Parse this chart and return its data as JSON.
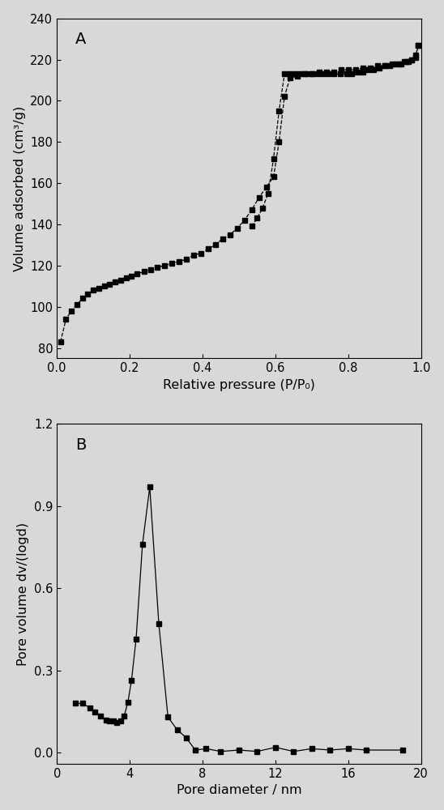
{
  "plot_A": {
    "label": "A",
    "adsorption_x": [
      0.01,
      0.025,
      0.04,
      0.055,
      0.07,
      0.085,
      0.1,
      0.115,
      0.13,
      0.145,
      0.16,
      0.175,
      0.19,
      0.205,
      0.22,
      0.24,
      0.258,
      0.275,
      0.295,
      0.315,
      0.335,
      0.355,
      0.375,
      0.395,
      0.415,
      0.435,
      0.455,
      0.475,
      0.495,
      0.515,
      0.535,
      0.555,
      0.575,
      0.595,
      0.61,
      0.625,
      0.64,
      0.66,
      0.68,
      0.7,
      0.72,
      0.74,
      0.76,
      0.78,
      0.8,
      0.82,
      0.84,
      0.86,
      0.88,
      0.9,
      0.92,
      0.94,
      0.96,
      0.975,
      0.985,
      0.993
    ],
    "adsorption_y": [
      83,
      94,
      98,
      101,
      104,
      106,
      108,
      109,
      110,
      111,
      112,
      113,
      114,
      115,
      116,
      117,
      118,
      119,
      120,
      121,
      122,
      123,
      125,
      126,
      128,
      130,
      133,
      135,
      138,
      142,
      147,
      153,
      158,
      163,
      180,
      202,
      211,
      212,
      213,
      213,
      214,
      214,
      214,
      215,
      215,
      215,
      216,
      216,
      217,
      217,
      218,
      218,
      219,
      220,
      221,
      227
    ],
    "desorption_x": [
      0.993,
      0.985,
      0.975,
      0.965,
      0.955,
      0.945,
      0.93,
      0.915,
      0.9,
      0.885,
      0.87,
      0.855,
      0.84,
      0.825,
      0.81,
      0.795,
      0.778,
      0.76,
      0.745,
      0.73,
      0.715,
      0.7,
      0.685,
      0.67,
      0.655,
      0.64,
      0.625,
      0.61,
      0.595,
      0.58,
      0.565,
      0.55,
      0.535
    ],
    "desorption_y": [
      227,
      222,
      220,
      219,
      219,
      218,
      218,
      217,
      217,
      216,
      215,
      215,
      214,
      214,
      213,
      213,
      213,
      213,
      213,
      213,
      213,
      213,
      213,
      213,
      213,
      213,
      213,
      195,
      172,
      155,
      148,
      143,
      139
    ],
    "xlabel": "Relative pressure (P/P₀)",
    "ylabel": "Volume adsorbed (cm³/g)",
    "xlim": [
      0.0,
      1.0
    ],
    "ylim": [
      75,
      240
    ],
    "yticks": [
      80,
      100,
      120,
      140,
      160,
      180,
      200,
      220,
      240
    ],
    "xticks": [
      0.0,
      0.2,
      0.4,
      0.6,
      0.8,
      1.0
    ]
  },
  "plot_B": {
    "label": "B",
    "x": [
      1.0,
      1.4,
      1.8,
      2.1,
      2.4,
      2.7,
      2.9,
      3.1,
      3.3,
      3.5,
      3.7,
      3.9,
      4.1,
      4.35,
      4.7,
      5.1,
      5.6,
      6.1,
      6.6,
      7.1,
      7.6,
      8.2,
      9.0,
      10.0,
      11.0,
      12.0,
      13.0,
      14.0,
      15.0,
      16.0,
      17.0,
      19.0
    ],
    "y": [
      0.18,
      0.18,
      0.165,
      0.15,
      0.135,
      0.12,
      0.115,
      0.115,
      0.11,
      0.115,
      0.135,
      0.185,
      0.265,
      0.415,
      0.76,
      0.97,
      0.47,
      0.13,
      0.085,
      0.055,
      0.01,
      0.015,
      0.005,
      0.01,
      0.005,
      0.02,
      0.005,
      0.015,
      0.01,
      0.015,
      0.01,
      0.01
    ],
    "xlabel": "Pore diameter / nm",
    "ylabel": "Pore volume dv/(logd)",
    "xlim": [
      0,
      20
    ],
    "ylim": [
      -0.04,
      1.2
    ],
    "yticks": [
      0.0,
      0.3,
      0.6,
      0.9,
      1.2
    ],
    "xticks": [
      0,
      4,
      8,
      12,
      16,
      20
    ]
  },
  "marker": "s",
  "marker_size": 4.5,
  "line_color": "black",
  "bg_dot_color": "#c8c8c8",
  "bg_base_color": "#d8d8d8",
  "font_size_label": 11.5,
  "font_size_tick": 10.5,
  "font_size_label_letter": 14
}
